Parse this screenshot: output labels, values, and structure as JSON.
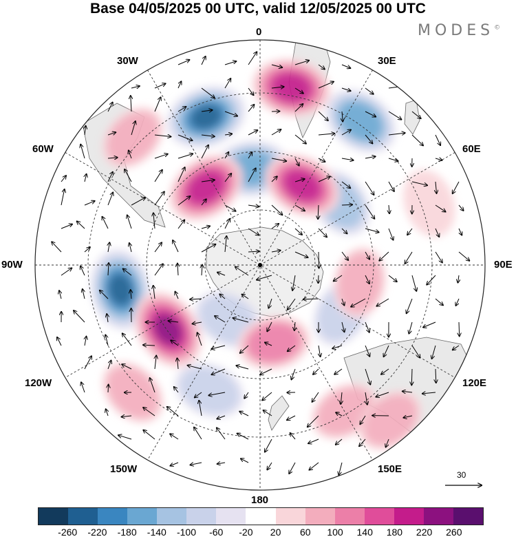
{
  "title": "Base 04/05/2025 00 UTC, valid 12/05/2025 00 UTC",
  "brand": "MODES",
  "brand_mark": "©",
  "map": {
    "projection": "south-polar-stereographic",
    "longitude_labels": {
      "top": "0",
      "bottom": "180",
      "left": "90W",
      "right": "90E",
      "upper_left_1": "30W",
      "upper_left_2": "60W",
      "upper_right_1": "30E",
      "upper_right_2": "60E",
      "lower_left_1": "120W",
      "lower_left_2": "150W",
      "lower_right_1": "120E",
      "lower_right_2": "150E"
    },
    "reference_arrow_value": "30"
  },
  "anomalies": [
    {
      "lon": -20,
      "colat": 0.7,
      "value": -220
    },
    {
      "lon": -5,
      "colat": 0.43,
      "value": -160
    },
    {
      "lon": 35,
      "colat": 0.78,
      "value": -160
    },
    {
      "lon": 52,
      "colat": 0.45,
      "value": -100
    },
    {
      "lon": 10,
      "colat": 0.8,
      "value": 190
    },
    {
      "lon": 28,
      "colat": 0.4,
      "value": 180
    },
    {
      "lon": -35,
      "colat": 0.42,
      "value": 200
    },
    {
      "lon": -45,
      "colat": 0.8,
      "value": 60
    },
    {
      "lon": -100,
      "colat": 0.63,
      "value": -220
    },
    {
      "lon": -125,
      "colat": 0.5,
      "value": 230
    },
    {
      "lon": -135,
      "colat": 0.8,
      "value": 60
    },
    {
      "lon": -158,
      "colat": 0.6,
      "value": -80
    },
    {
      "lon": -150,
      "colat": 0.28,
      "value": -80
    },
    {
      "lon": 170,
      "colat": 0.35,
      "value": 100
    },
    {
      "lon": 150,
      "colat": 0.75,
      "value": 60
    },
    {
      "lon": 120,
      "colat": 0.42,
      "value": -80
    },
    {
      "lon": 100,
      "colat": 0.45,
      "value": 80
    },
    {
      "lon": 70,
      "colat": 0.8,
      "value": 40
    },
    {
      "lon": 140,
      "colat": 0.9,
      "value": 60
    }
  ],
  "colorbar": {
    "colors": [
      "#123a5c",
      "#1f5f91",
      "#3a86c0",
      "#6aa7d2",
      "#a6c3e2",
      "#c9d2ea",
      "#e6e2f1",
      "#ffffff",
      "#f9d6da",
      "#f3adbd",
      "#ec7fa8",
      "#e04d9a",
      "#c41c8b",
      "#8c117f",
      "#5a0f6e"
    ],
    "tick_labels": [
      "-260",
      "-220",
      "-180",
      "-140",
      "-100",
      "-60",
      "-20",
      "20",
      "60",
      "100",
      "140",
      "180",
      "220",
      "260"
    ]
  }
}
